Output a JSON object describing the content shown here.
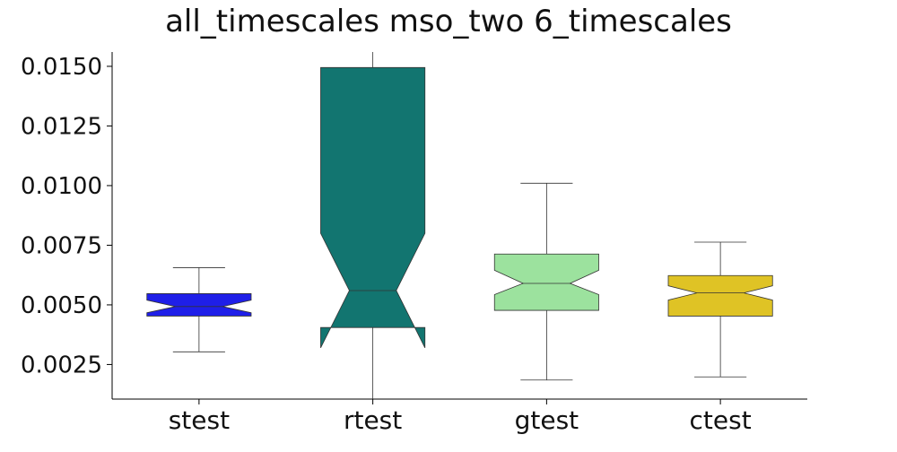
{
  "chart_data": {
    "type": "boxplot",
    "title": "all_timescales mso_two 6_timescales",
    "categories": [
      "stest",
      "rtest",
      "gtest",
      "ctest"
    ],
    "ylim": [
      0.00105,
      0.0156
    ],
    "yticks": [
      "0.0025",
      "0.0050",
      "0.0075",
      "0.0100",
      "0.0125",
      "0.0150"
    ],
    "notched": true,
    "boxes": [
      {
        "name": "stest",
        "whisker_low": 0.00303,
        "q1": 0.00453,
        "median": 0.00493,
        "q3": 0.00547,
        "whisker_high": 0.00656,
        "notch_low": 0.00467,
        "notch_high": 0.0052,
        "color": "#1f1fe8"
      },
      {
        "name": "rtest",
        "whisker_low": 0.00105,
        "q1": 0.00405,
        "median": 0.0056,
        "q3": 0.01495,
        "whisker_high": 0.0156,
        "notch_low": 0.0032,
        "notch_high": 0.008,
        "color": "#127570"
      },
      {
        "name": "gtest",
        "whisker_low": 0.00185,
        "q1": 0.00477,
        "median": 0.0059,
        "q3": 0.00713,
        "whisker_high": 0.0101,
        "notch_low": 0.00543,
        "notch_high": 0.00645,
        "color": "#9ce29e"
      },
      {
        "name": "ctest",
        "whisker_low": 0.00198,
        "q1": 0.00453,
        "median": 0.0055,
        "q3": 0.00623,
        "whisker_high": 0.00763,
        "notch_low": 0.0052,
        "notch_high": 0.0058,
        "color": "#dfc325"
      }
    ],
    "grid": false
  }
}
